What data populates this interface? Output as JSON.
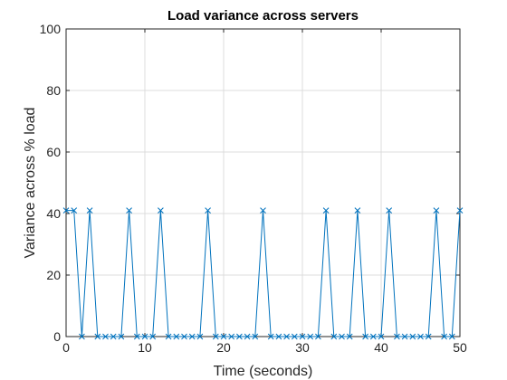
{
  "chart_data": {
    "type": "line",
    "title": "Load variance across servers",
    "xlabel": "Time (seconds)",
    "ylabel": "Variance across % load",
    "xlim": [
      0,
      50
    ],
    "ylim": [
      0,
      100
    ],
    "xticks": [
      0,
      10,
      20,
      30,
      40,
      50
    ],
    "yticks": [
      0,
      20,
      40,
      60,
      80,
      100
    ],
    "grid": true,
    "line_color": "#0072BD",
    "marker": "x",
    "series": [
      {
        "x": [
          0,
          1,
          2,
          3,
          4,
          5,
          6,
          7,
          8,
          9,
          10,
          11,
          12,
          13,
          14,
          15,
          16,
          17,
          18,
          19,
          20,
          21,
          22,
          23,
          24,
          25,
          26,
          27,
          28,
          29,
          30,
          31,
          32,
          33,
          34,
          35,
          36,
          37,
          38,
          39,
          40,
          41,
          42,
          43,
          44,
          45,
          46,
          47,
          48,
          49,
          50
        ],
        "y": [
          41,
          41,
          0,
          41,
          0,
          0,
          0,
          0,
          41,
          0,
          0,
          0,
          41,
          0,
          0,
          0,
          0,
          0,
          41,
          0,
          0,
          0,
          0,
          0,
          0,
          41,
          0,
          0,
          0,
          0,
          0,
          0,
          0,
          41,
          0,
          0,
          0,
          41,
          0,
          0,
          0,
          41,
          0,
          0,
          0,
          0,
          0,
          41,
          0,
          0,
          41
        ]
      }
    ]
  }
}
